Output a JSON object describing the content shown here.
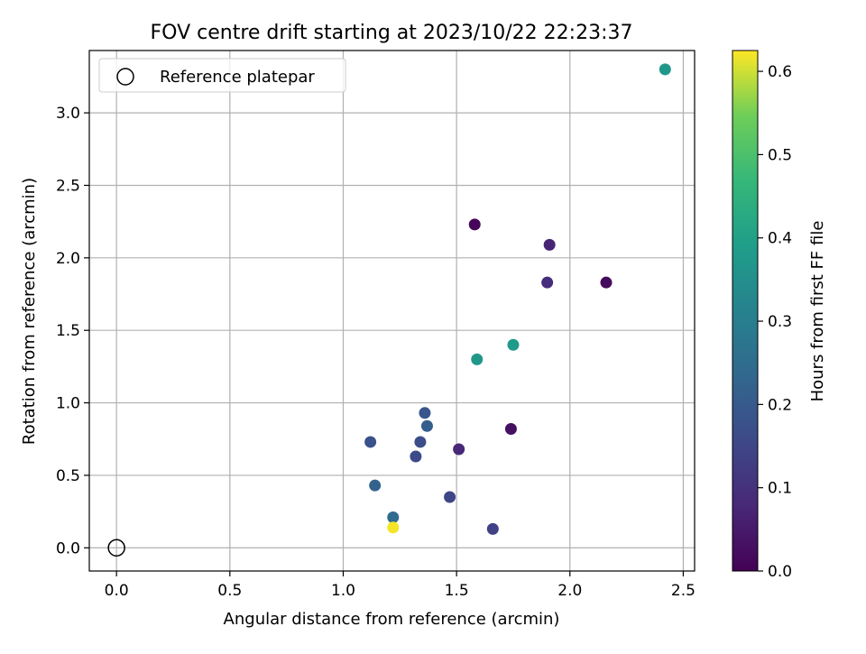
{
  "chart_data": {
    "type": "scatter",
    "title": "FOV centre drift starting at 2023/10/22 22:23:37",
    "xlabel": "Angular distance from reference (arcmin)",
    "ylabel": "Rotation from reference (arcmin)",
    "xlim": [
      -0.12,
      2.55
    ],
    "ylim": [
      -0.16,
      3.43
    ],
    "xticks": [
      "0.0",
      "0.5",
      "1.0",
      "1.5",
      "2.0",
      "2.5"
    ],
    "xtick_values": [
      0.0,
      0.5,
      1.0,
      1.5,
      2.0,
      2.5
    ],
    "yticks": [
      "0.0",
      "0.5",
      "1.0",
      "1.5",
      "2.0",
      "2.5",
      "3.0"
    ],
    "ytick_values": [
      0.0,
      0.5,
      1.0,
      1.5,
      2.0,
      2.5,
      3.0
    ],
    "grid": true,
    "legend": {
      "placement": "top-left",
      "entries": [
        "Reference platepar"
      ]
    },
    "reference_point": {
      "x": 0.0,
      "y": 0.0
    },
    "colorbar": {
      "label": "Hours from first FF file",
      "range": [
        0.0,
        0.625
      ],
      "ticks": [
        "0.0",
        "0.1",
        "0.2",
        "0.3",
        "0.4",
        "0.5",
        "0.6"
      ],
      "tick_values": [
        0.0,
        0.1,
        0.2,
        0.3,
        0.4,
        0.5,
        0.6
      ],
      "colormap": "viridis"
    },
    "points": [
      {
        "x": 1.58,
        "y": 2.23,
        "hours": 0.01
      },
      {
        "x": 2.16,
        "y": 1.83,
        "hours": 0.02
      },
      {
        "x": 1.74,
        "y": 0.82,
        "hours": 0.03
      },
      {
        "x": 1.91,
        "y": 2.09,
        "hours": 0.07
      },
      {
        "x": 1.51,
        "y": 0.68,
        "hours": 0.08
      },
      {
        "x": 1.9,
        "y": 1.83,
        "hours": 0.09
      },
      {
        "x": 1.66,
        "y": 0.13,
        "hours": 0.14
      },
      {
        "x": 1.47,
        "y": 0.35,
        "hours": 0.15
      },
      {
        "x": 1.32,
        "y": 0.63,
        "hours": 0.16
      },
      {
        "x": 1.34,
        "y": 0.73,
        "hours": 0.17
      },
      {
        "x": 1.12,
        "y": 0.73,
        "hours": 0.18
      },
      {
        "x": 1.36,
        "y": 0.93,
        "hours": 0.19
      },
      {
        "x": 1.37,
        "y": 0.84,
        "hours": 0.21
      },
      {
        "x": 1.14,
        "y": 0.43,
        "hours": 0.22
      },
      {
        "x": 1.22,
        "y": 0.21,
        "hours": 0.24
      },
      {
        "x": 1.59,
        "y": 1.3,
        "hours": 0.37
      },
      {
        "x": 1.75,
        "y": 1.4,
        "hours": 0.38
      },
      {
        "x": 2.42,
        "y": 3.3,
        "hours": 0.37
      },
      {
        "x": 1.22,
        "y": 0.14,
        "hours": 0.62
      }
    ]
  }
}
